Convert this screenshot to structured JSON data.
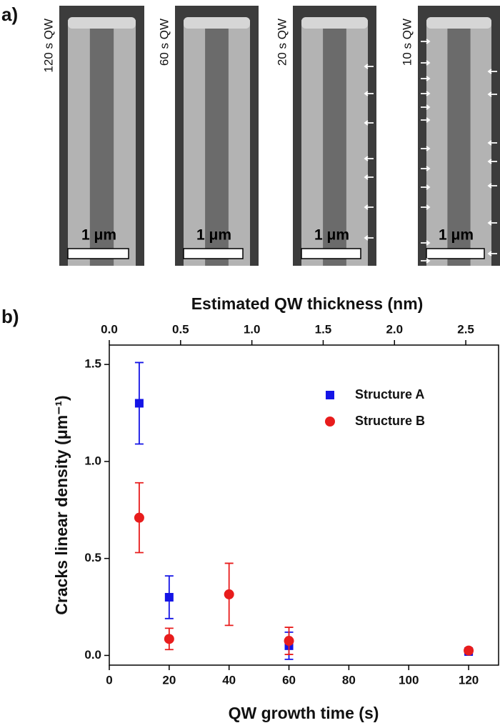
{
  "panels": {
    "a": {
      "label": "a)",
      "images": [
        {
          "label": "120 s QW",
          "scale": "1 μm"
        },
        {
          "label": "60 s QW",
          "scale": "1 μm"
        },
        {
          "label": "20 s QW",
          "scale": "1 μm"
        },
        {
          "label": "10 s QW",
          "scale": "1 μm"
        }
      ]
    },
    "b": {
      "label": "b)"
    }
  },
  "chart_data": {
    "type": "scatter",
    "x_label": "QW growth time (s)",
    "y_label": "Cracks linear density (μm⁻¹)",
    "x2_label": "Estimated QW thickness (nm)",
    "xlim": [
      0,
      130
    ],
    "xticks": [
      0,
      20,
      40,
      60,
      80,
      100,
      120
    ],
    "x2lim": [
      0,
      2.73
    ],
    "x2ticks": [
      {
        "value": 0,
        "label": "0.0"
      },
      0.5,
      {
        "value": 1,
        "label": "1.0"
      },
      1.5,
      {
        "value": 2,
        "label": "2.0"
      },
      2.5
    ],
    "ylim": [
      -0.05,
      1.6
    ],
    "yticks": [
      {
        "value": 0,
        "label": "0.0"
      },
      0.5,
      {
        "value": 1,
        "label": "1.0"
      },
      1.5
    ],
    "legend": "upper right",
    "series": [
      {
        "name": "Structure A",
        "color": "#1414e6",
        "marker": "square",
        "x": [
          10,
          20,
          60,
          120
        ],
        "values": [
          1.3,
          0.3,
          0.05,
          0.02
        ],
        "errors": [
          0.21,
          0.11,
          0.07,
          0.012
        ]
      },
      {
        "name": "Structure B",
        "color": "#e81c1c",
        "marker": "circle",
        "x": [
          10,
          20,
          40,
          60,
          120
        ],
        "values": [
          0.71,
          0.085,
          0.315,
          0.075,
          0.025
        ],
        "errors": [
          0.18,
          0.055,
          0.16,
          0.07,
          0.01
        ]
      }
    ]
  }
}
